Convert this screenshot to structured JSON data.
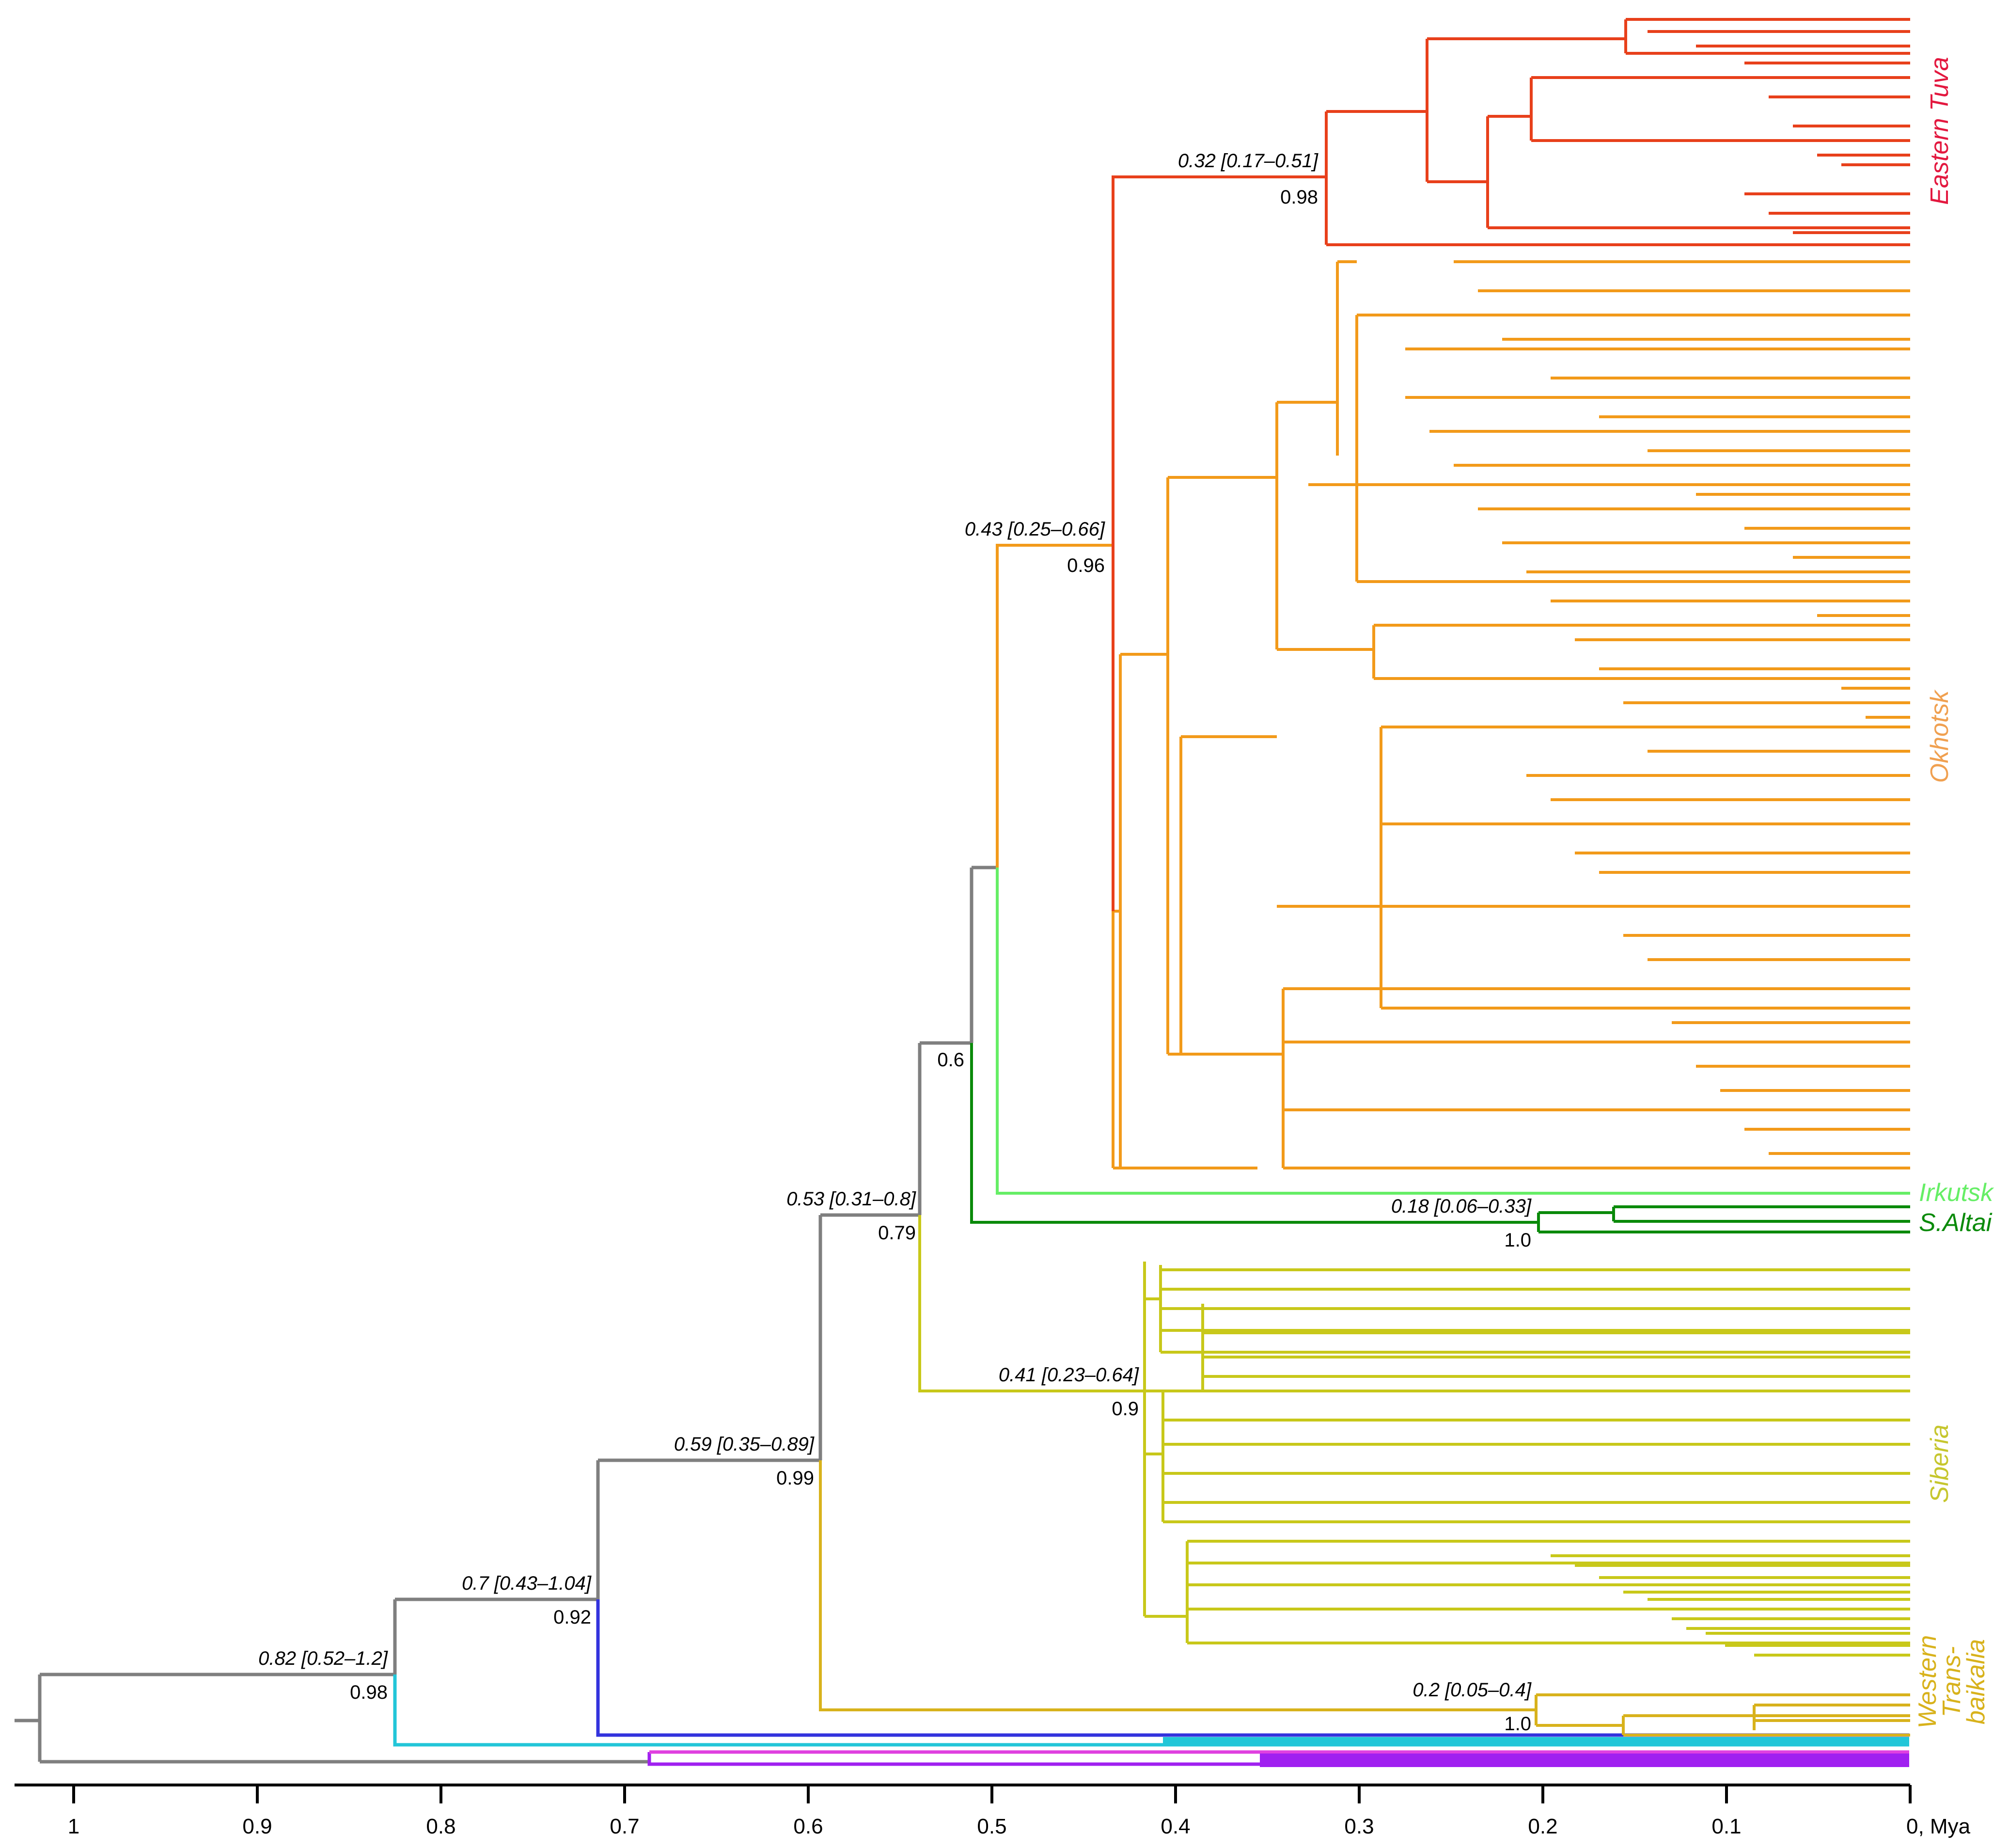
{
  "colors": {
    "root": "#7f7f7f",
    "eastern_tuva": "#e8401b",
    "eastern_tuva_label": "#e3183f",
    "okhotsk": "#f29a1a",
    "okhotsk_label": "#f0a050",
    "irkutsk": "#66ee66",
    "s_altai": "#0a8a0a",
    "siberia": "#c8c81a",
    "siberia_label": "#c6c62e",
    "western_transbaikalia": "#d8b21c",
    "blue": "#3333dd",
    "cyan": "#22c6d8",
    "violet": "#a020f0",
    "magenta": "#e040e0"
  },
  "axis": {
    "ticks": [
      "1",
      "0.9",
      "0.8",
      "0.7",
      "0.6",
      "0.5",
      "0.4",
      "0.3",
      "0.2",
      "0.1",
      "0, Mya"
    ]
  },
  "clades": {
    "eastern_tuva": "Eastern Tuva",
    "okhotsk": "Okhotsk",
    "irkutsk": "Irkutsk",
    "s_altai": "S.Altai",
    "siberia": "Siberia",
    "western_transbaikalia_line1": "Western",
    "western_transbaikalia_line2": "Trans-",
    "western_transbaikalia_line3": "baikalia"
  },
  "nodes": {
    "eastern_tuva": {
      "age": "0.32 [0.17–0.51]",
      "pp": "0.98"
    },
    "okhotsk_tuva": {
      "age": "0.43 [0.25–0.66]",
      "pp": "0.96"
    },
    "okhotsk_altai": {
      "pp": "0.6"
    },
    "irkutsk_altai": {
      "age": "0.18 [0.06–0.33]",
      "pp": "1.0"
    },
    "core": {
      "age": "0.53 [0.31–0.8]",
      "pp": "0.79"
    },
    "siberia": {
      "age": "0.41 [0.23–0.64]",
      "pp": "0.9"
    },
    "with_transbaikalia": {
      "age": "0.59 [0.35–0.89]",
      "pp": "0.99"
    },
    "transbaikalia": {
      "age": "0.2 [0.05–0.4]",
      "pp": "1.0"
    },
    "with_blue": {
      "age": "0.7 [0.43–1.04]",
      "pp": "0.92"
    },
    "with_cyan": {
      "age": "0.82 [0.52–1.2]",
      "pp": "0.98"
    }
  }
}
